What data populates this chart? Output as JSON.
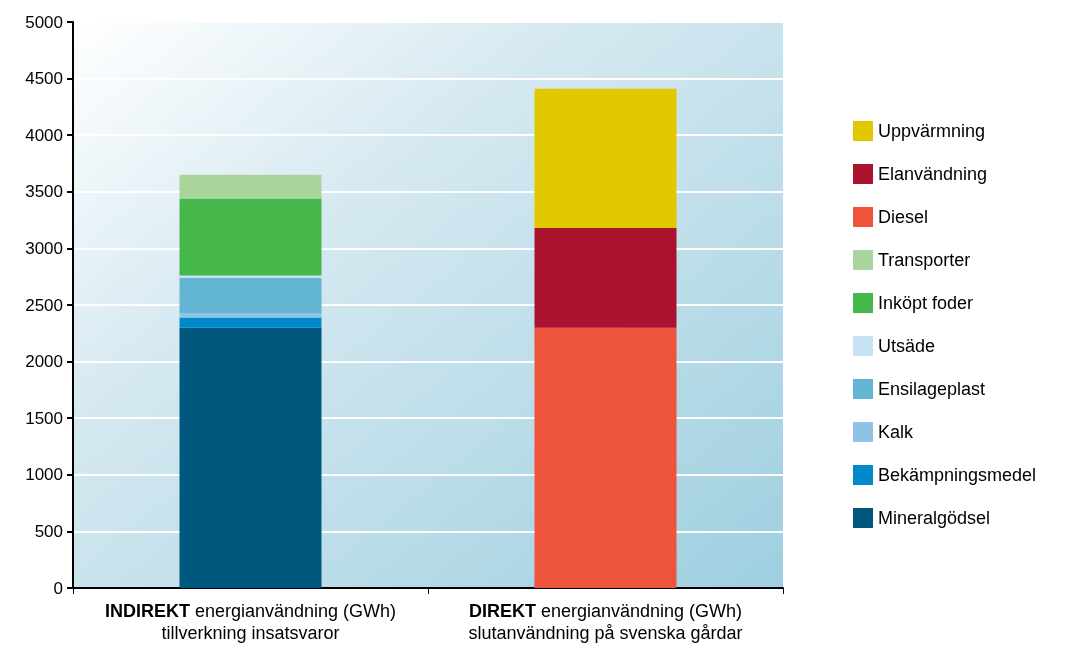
{
  "chart_data": {
    "type": "bar",
    "stacked": true,
    "categories": [
      "INDIREKT energianvändning (GWh)\ntillverkning insatsvaror",
      "DIREKT energianvändning (GWh)\nslutanvändning på svenska gårdar"
    ],
    "series": [
      {
        "name": "Mineralgödsel",
        "color": "#00587e",
        "values": [
          2300,
          null
        ]
      },
      {
        "name": "Bekämpningsmedel",
        "color": "#0089cb",
        "values": [
          90,
          null
        ]
      },
      {
        "name": "Kalk",
        "color": "#8fc3e6",
        "values": [
          40,
          null
        ]
      },
      {
        "name": "Ensilageplast",
        "color": "#62b5d3",
        "values": [
          310,
          null
        ]
      },
      {
        "name": "Utsäde",
        "color": "#c6e2f3",
        "values": [
          20,
          null
        ]
      },
      {
        "name": "Inköpt foder",
        "color": "#45b74b",
        "values": [
          680,
          null
        ]
      },
      {
        "name": "Transporter",
        "color": "#a9d59d",
        "values": [
          210,
          null
        ]
      },
      {
        "name": "Diesel",
        "color": "#ee533b",
        "values": [
          null,
          2300
        ]
      },
      {
        "name": "Elanvändning",
        "color": "#aa122e",
        "values": [
          null,
          880
        ]
      },
      {
        "name": "Uppvärmning",
        "color": "#e1c800",
        "values": [
          null,
          1230
        ]
      }
    ],
    "ylim": [
      0,
      5000
    ],
    "yticks": [
      0,
      500,
      1000,
      1500,
      2000,
      2500,
      3000,
      3500,
      4000,
      4500,
      5000
    ],
    "grid": "y",
    "legend": "right"
  }
}
